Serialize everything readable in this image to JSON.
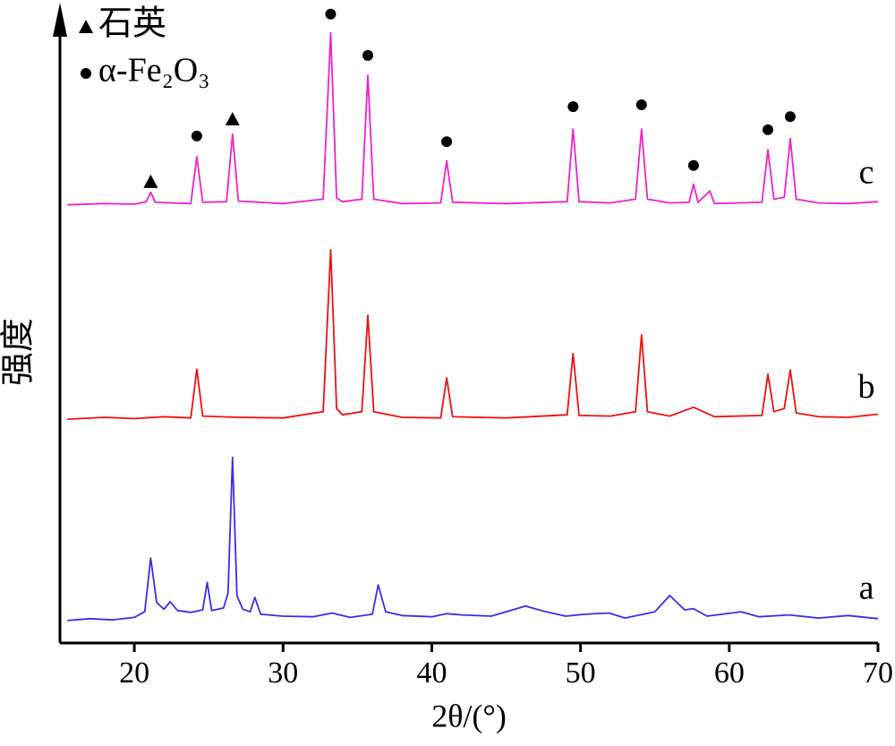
{
  "chart_data": {
    "type": "line",
    "xlabel": "2θ/(°)",
    "ylabel": "强度",
    "xlim": [
      15,
      70
    ],
    "xticks": [
      20,
      30,
      40,
      50,
      60,
      70
    ],
    "ylim": [
      0,
      101
    ],
    "series": [
      {
        "name": "a",
        "color": "#3a2ee8",
        "x": [
          15.5,
          17,
          18.5,
          20,
          20.7,
          21.1,
          21.5,
          22,
          22.4,
          22.9,
          23.8,
          24.6,
          24.9,
          25.2,
          26,
          26.3,
          26.6,
          26.9,
          27.3,
          27.8,
          28.1,
          28.5,
          30,
          32,
          33.3,
          34.5,
          36,
          36.4,
          36.9,
          38,
          40,
          41,
          42,
          44,
          46.3,
          47.5,
          49,
          50.3,
          51.9,
          53,
          55,
          56,
          57,
          57.6,
          58.5,
          60.8,
          62,
          64,
          66,
          68,
          70
        ],
        "values": [
          3.6,
          3.9,
          3.7,
          4.1,
          5,
          13.6,
          6.5,
          5.4,
          6.6,
          5.2,
          4.9,
          5.3,
          9.7,
          5.2,
          5.6,
          8,
          29.7,
          7.5,
          5.4,
          5,
          7.3,
          4.6,
          4.3,
          4.2,
          4.8,
          4.1,
          4.6,
          9.3,
          5,
          4.4,
          4.2,
          4.7,
          4.5,
          4.3,
          5.9,
          5.1,
          4.3,
          4.6,
          4.8,
          4,
          5,
          7.6,
          5.3,
          5.5,
          4.3,
          5,
          4.2,
          4.5,
          4,
          4.4,
          3.9
        ]
      },
      {
        "name": "b",
        "color": "#ee1111",
        "x": [
          15.5,
          18,
          20,
          22,
          23.8,
          24.2,
          24.6,
          27,
          30,
          32.7,
          33.2,
          33.6,
          34,
          35.3,
          35.7,
          36.1,
          38,
          40.6,
          41,
          41.4,
          45,
          49.1,
          49.5,
          49.9,
          52,
          53.7,
          54.1,
          54.5,
          56,
          57.6,
          59,
          62.2,
          62.6,
          63,
          63.7,
          64.1,
          64.5,
          66,
          68,
          70
        ],
        "values": [
          35.8,
          36.1,
          35.9,
          36.2,
          36,
          43.8,
          36.3,
          36.1,
          36,
          37,
          62.9,
          37.5,
          36.5,
          37,
          52.4,
          37,
          36.1,
          36,
          42.4,
          36.2,
          36,
          36.5,
          46.3,
          36.4,
          36.3,
          37,
          49.3,
          37,
          36.3,
          37.7,
          36.2,
          36.4,
          43,
          37,
          37.5,
          43.7,
          36.8,
          36.2,
          36.1,
          36.6
        ]
      },
      {
        "name": "c",
        "color": "#ee22cc",
        "x": [
          15.5,
          18,
          20,
          20.8,
          21.1,
          21.4,
          23.8,
          24.2,
          24.6,
          26.2,
          26.6,
          27,
          30,
          32.7,
          33.2,
          33.6,
          34,
          35.3,
          35.7,
          36.1,
          38,
          40.6,
          41,
          41.4,
          45,
          49.1,
          49.5,
          49.9,
          52,
          53.7,
          54.1,
          54.5,
          56,
          57.3,
          57.6,
          57.9,
          58.7,
          59,
          62.2,
          62.6,
          63,
          63.7,
          64.1,
          64.5,
          66,
          68,
          70
        ],
        "values": [
          70.1,
          70.3,
          70.2,
          70.6,
          72.1,
          70.5,
          70.3,
          77.8,
          70.5,
          70.6,
          81.4,
          70.7,
          70.3,
          71,
          97.6,
          71.2,
          70.6,
          71,
          90.8,
          71,
          70.3,
          70.4,
          77.1,
          70.5,
          70.3,
          70.6,
          82.2,
          70.6,
          70.4,
          71,
          82.2,
          71,
          70.4,
          70.5,
          73.4,
          70.5,
          72.3,
          70.3,
          70.5,
          78.9,
          71,
          71.3,
          80.7,
          71,
          70.4,
          70.3,
          70.6
        ]
      }
    ],
    "markers": [
      {
        "name": "石英",
        "symbol": "triangle",
        "color": "#000000",
        "x": [
          21.1,
          26.6
        ],
        "y": [
          73.8,
          83.8
        ]
      },
      {
        "name": "α-Fe₂O₃",
        "symbol": "circle",
        "color": "#000000",
        "x": [
          24.2,
          33.2,
          35.7,
          41,
          49.5,
          54.1,
          57.6,
          62.6,
          64.1
        ],
        "y": [
          81.1,
          100.6,
          94.0,
          80.2,
          85.8,
          86.1,
          76.4,
          82.1,
          84.2
        ]
      }
    ]
  }
}
